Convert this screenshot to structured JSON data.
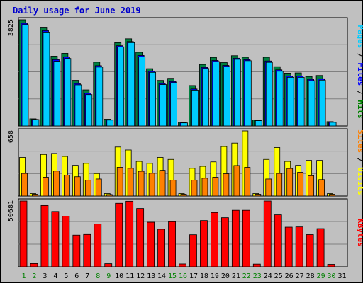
{
  "title": "Daily usage for June 2019",
  "chart_data": {
    "type": "bar",
    "title": "Daily usage for June 2019",
    "categories": [
      "1",
      "2",
      "3",
      "4",
      "5",
      "6",
      "7",
      "8",
      "9",
      "10",
      "11",
      "12",
      "13",
      "14",
      "15",
      "16",
      "17",
      "18",
      "19",
      "20",
      "21",
      "22",
      "23",
      "24",
      "25",
      "26",
      "27",
      "28",
      "29",
      "30",
      "31"
    ],
    "weekend_days": [
      "1",
      "2",
      "8",
      "9",
      "15",
      "16",
      "22",
      "23",
      "29",
      "30"
    ],
    "panels": [
      {
        "name": "hits-files-pages",
        "ymax_label": "3825",
        "ymax": 3825,
        "axis_label_parts": [
          {
            "text": "Pages",
            "color": "#00ccff"
          },
          {
            "text": " / ",
            "color": "#000000"
          },
          {
            "text": "Files",
            "color": "#0000ff"
          },
          {
            "text": " / ",
            "color": "#000000"
          },
          {
            "text": "Hits",
            "color": "#008000"
          }
        ],
        "series": [
          {
            "name": "Hits",
            "color": "#008040",
            "values": [
              3825,
              256,
              3557,
              2513,
              2615,
              1643,
              1299,
              2298,
              243,
              3000,
              3140,
              2652,
              2063,
              1640,
              1716,
              135,
              1456,
              2214,
              2468,
              2282,
              2530,
              2473,
              213,
              2473,
              2136,
              1902,
              1911,
              1781,
              1817,
              156,
              0
            ]
          },
          {
            "name": "Files",
            "color": "#0000ff",
            "values": [
              3700,
              235,
              3434,
              2390,
              2490,
              1528,
              1180,
              2170,
              220,
              2890,
              3040,
              2540,
              1970,
              1530,
              1600,
              120,
              1330,
              2110,
              2360,
              2180,
              2440,
              2390,
              200,
              2340,
              2020,
              1800,
              1800,
              1680,
              1700,
              140,
              0
            ]
          },
          {
            "name": "Pages",
            "color": "#00ccff",
            "values": [
              3650,
              230,
              3380,
              2330,
              2430,
              1480,
              1130,
              2120,
              210,
              2850,
              3000,
              2490,
              1930,
              1490,
              1560,
              110,
              1290,
              2070,
              2320,
              2140,
              2400,
              2350,
              190,
              2290,
              1970,
              1750,
              1750,
              1630,
              1650,
              130,
              0
            ]
          }
        ]
      },
      {
        "name": "visits-sites",
        "ymax_label": "658",
        "ymax": 658,
        "axis_label_parts": [
          {
            "text": "Sites",
            "color": "#ff8000"
          },
          {
            "text": " / ",
            "color": "#000000"
          },
          {
            "text": "Visits",
            "color": "#ffff00"
          }
        ],
        "series": [
          {
            "name": "Visits",
            "color": "#ffff00",
            "values": [
              390,
              25,
              420,
              430,
              400,
              310,
              330,
              227,
              25,
              495,
              465,
              350,
              330,
              390,
              370,
              25,
              280,
              300,
              345,
              500,
              535,
              658,
              25,
              370,
              490,
              350,
              310,
              360,
              360,
              25,
              0
            ]
          },
          {
            "name": "Sites",
            "color": "#ff8000",
            "values": [
              228,
              18,
              190,
              252,
              210,
              195,
              160,
              172,
              15,
              290,
              280,
              250,
              230,
              260,
              160,
              18,
              160,
              180,
              190,
              225,
              308,
              290,
              18,
              172,
              228,
              278,
              240,
              205,
              166,
              18,
              0
            ]
          }
        ]
      },
      {
        "name": "kbytes",
        "ymax_label": "50681",
        "ymax": 50681,
        "axis_label_parts": [
          {
            "text": "KBytes",
            "color": "#ff0000"
          }
        ],
        "series": [
          {
            "name": "KBytes",
            "color": "#ff0000",
            "values": [
              50681,
              2500,
              47200,
              42600,
              39000,
              24400,
              24900,
              32900,
              2400,
              48900,
              50500,
              44900,
              34300,
              28900,
              34700,
              2200,
              24700,
              35600,
              41800,
              37800,
              43500,
              43500,
              2100,
              50681,
              40000,
              30500,
              30700,
              24800,
              29400,
              1900,
              0
            ]
          }
        ]
      }
    ]
  }
}
